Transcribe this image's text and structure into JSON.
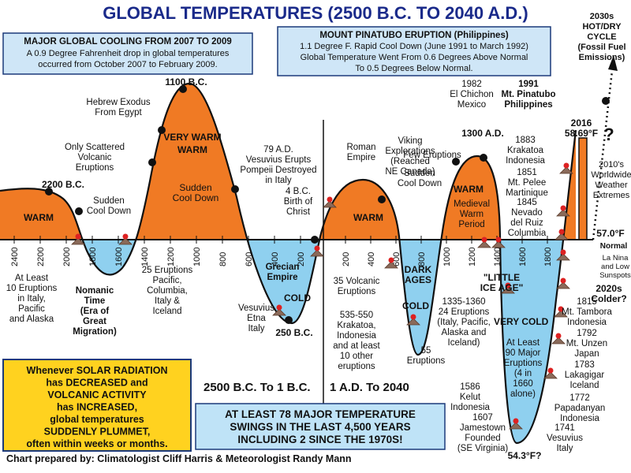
{
  "title": "GLOBAL TEMPERATURES (2500 B.C. TO 2040 A.D.)",
  "cooling_box": {
    "heading": "MAJOR GLOBAL COOLING FROM 2007 TO 2009",
    "line1": "A 0.9 Degree Fahrenheit drop in global temperatures",
    "line2": "occurred from October 2007 to February 2009."
  },
  "pinatubo_box": {
    "heading": "MOUNT PINATUBO ERUPTION (Philippines)",
    "line1": "1.1 Degree F. Rapid Cool Down (June 1991 to March 1992)",
    "line2": "Global Temperature Went From 0.6 Degrees Above Normal",
    "line3": "To 0.5 Degrees Below Normal."
  },
  "future_note": [
    "2030s",
    "HOT/DRY",
    "CYCLE",
    "(Fossil Fuel",
    "Emissions)"
  ],
  "solar_box": [
    "Whenever SOLAR RADIATION",
    "has DECREASED and",
    "VOLCANIC ACTIVITY",
    "has INCREASED,",
    "global temperatures",
    "SUDDENLY PLUMMET,",
    "often within weeks or months."
  ],
  "swings_box": [
    "AT LEAST 78 MAJOR TEMPERATURE",
    "SWINGS IN THE LAST 4,500 YEARS",
    "INCLUDING 2 SINCE THE 1970S!"
  ],
  "period_bc": "2500 B.C. To 1 B.C.",
  "period_ad": "1 A.D. To 2040",
  "credit": "Chart prepared by: Climatologist Cliff Harris & Meteorologist Randy Mann",
  "axis_ticks_bc": [
    "2400",
    "2200",
    "2000",
    "1800",
    "1600",
    "1400",
    "1200",
    "1000",
    "800",
    "600",
    "400",
    "200"
  ],
  "axis_ticks_ad": [
    "200",
    "400",
    "600",
    "800",
    "1000",
    "1200",
    "1400",
    "1600",
    "1800"
  ],
  "warm_labels": [
    "WARM",
    "VERY WARM",
    "WARM",
    "WARM"
  ],
  "cold_labels": [
    "COLD",
    "COLD",
    "VERY COLD"
  ],
  "annotations": {
    "b2200": "2200 B.C.",
    "sudden1": [
      "Sudden",
      "Cool Down"
    ],
    "scattered": [
      "Only Scattered",
      "Volcanic",
      "Eruptions"
    ],
    "exodus": [
      "Hebrew Exodus",
      "From Egypt"
    ],
    "b1100": "1100 B.C.",
    "sudden2": [
      "Sudden",
      "Cool Down"
    ],
    "vesuvius79": [
      "79 A.D.",
      "Vesuvius Erupts",
      "Pompeii Destroyed",
      "in Italy"
    ],
    "birth": [
      "4 B.C.",
      "Birth of",
      "Christ"
    ],
    "roman": [
      "Roman",
      "Empire"
    ],
    "viking": [
      "Viking",
      "Explorations",
      "(Reached",
      "NE Canada)"
    ],
    "chichon": [
      "1982",
      "El Chichon",
      "Mexico"
    ],
    "pinatubo": [
      "1991",
      "Mt. Pinatubo",
      "Philippines"
    ],
    "ad1300": "1300 A.D.",
    "few": "Few Eruptions",
    "sudden3": [
      "Sudden",
      "Cool Down"
    ],
    "medieval": [
      "Medieval",
      "Warm",
      "Period"
    ],
    "krakatoa1883": [
      "1883",
      "Krakatoa",
      "Indonesia"
    ],
    "pelee": [
      "1851",
      "Mt. Pelee",
      "Martinique"
    ],
    "ruiz": [
      "1845",
      "Nevado",
      "del Ruiz",
      "Columbia"
    ],
    "y2016": [
      "2016",
      "58.69°F"
    ],
    "qmark": "?",
    "extremes": [
      "2010's",
      "Worldwide",
      "Weather",
      "Extremes"
    ],
    "normal_temp": "57.0°F",
    "normal": "Normal",
    "nina": [
      "La Nina",
      "and Low",
      "Sunspots"
    ],
    "colder": [
      "2020s",
      "Colder?"
    ],
    "italy10": [
      "At Least",
      "10 Eruptions",
      "in Italy,",
      "Pacific",
      "and Alaska"
    ],
    "nomanic": [
      "Nomanic",
      "Time",
      "(Era of",
      "Great",
      "Migration)"
    ],
    "eruptions25": [
      "25 Eruptions",
      "Pacific,",
      "Columbia,",
      "Italy &",
      "Iceland"
    ],
    "grecian": [
      "Grecian",
      "Empire"
    ],
    "etna": [
      "Vesuvius",
      "Etna",
      "Italy"
    ],
    "b250": "250 B.C.",
    "volcanic35": [
      "35 Volcanic",
      "Eruptions"
    ],
    "krakatoa535": [
      "535-550",
      "Krakatoa,",
      "Indonesia",
      "and at least",
      "10 other",
      "eruptions"
    ],
    "dark": [
      "DARK",
      "AGES"
    ],
    "eruptions55": [
      "55",
      "Eruptions"
    ],
    "eruptions24": [
      "1335-1360",
      "24 Eruptions",
      "(Italy, Pacific,",
      "Alaska and",
      "Iceland)"
    ],
    "ice_age": [
      "\"LITTLE",
      "ICE AGE\""
    ],
    "major90": [
      "At Least",
      "90 Major",
      "Eruptions",
      "(4 in",
      "1660",
      "alone)"
    ],
    "kelut": [
      "1586",
      "Kelut",
      "Indonesia"
    ],
    "jamestown": [
      "1607",
      "Jamestown",
      "Founded",
      "(SE Virginia)"
    ],
    "low_temp": "54.3°F?",
    "tambora": [
      "1815",
      "Mt. Tambora",
      "Indonesia"
    ],
    "unzen": [
      "1792",
      "Mt. Unzen",
      "Japan"
    ],
    "lakagigar": [
      "1783",
      "Lakagigar",
      "Iceland"
    ],
    "papadanyan": [
      "1772",
      "Papadanyan",
      "Indonesia"
    ],
    "vesuvius1741": [
      "1741",
      "Vesuvius",
      "Italy"
    ]
  },
  "colors": {
    "warm": "#f07a24",
    "cold": "#8fd0ef",
    "title": "#1a2a8a",
    "accent_red": "#b81414",
    "yellow": "#ffd21f"
  }
}
